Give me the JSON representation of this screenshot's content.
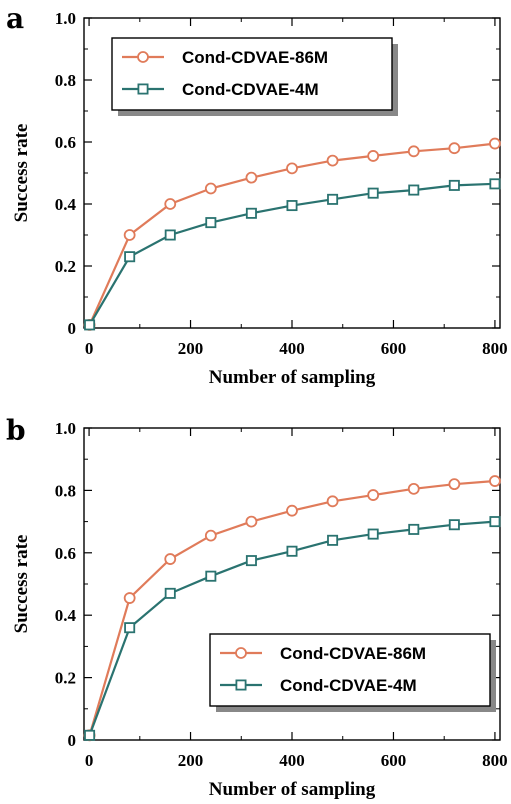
{
  "colors": {
    "orange": "#E07B5A",
    "teal": "#2A7370"
  },
  "chart_data": [
    {
      "panel": "a",
      "type": "line",
      "xlabel": "Number of sampling",
      "ylabel": "Success rate",
      "xlim": [
        -10,
        810
      ],
      "ylim": [
        0,
        1.0
      ],
      "xticks": [
        0,
        200,
        400,
        600,
        800
      ],
      "yticks": [
        0,
        0.2,
        0.4,
        0.6,
        0.8,
        1.0
      ],
      "xtick_labels": [
        "0",
        "200",
        "400",
        "600",
        "800"
      ],
      "ytick_labels": [
        "0",
        "0.2",
        "0.4",
        "0.6",
        "0.8",
        "1.0"
      ],
      "legend_position": "upper-left",
      "grid": false,
      "x": [
        1,
        80,
        160,
        240,
        320,
        400,
        480,
        560,
        640,
        720,
        800
      ],
      "series": [
        {
          "name": "Cond-CDVAE-86M",
          "marker": "circle",
          "color": "#E07B5A",
          "values": [
            0.01,
            0.3,
            0.4,
            0.45,
            0.485,
            0.515,
            0.54,
            0.555,
            0.57,
            0.58,
            0.595
          ]
        },
        {
          "name": "Cond-CDVAE-4M",
          "marker": "square",
          "color": "#2A7370",
          "values": [
            0.01,
            0.23,
            0.3,
            0.34,
            0.37,
            0.395,
            0.415,
            0.435,
            0.445,
            0.46,
            0.465
          ]
        }
      ]
    },
    {
      "panel": "b",
      "type": "line",
      "xlabel": "Number of sampling",
      "ylabel": "Success rate",
      "xlim": [
        -10,
        810
      ],
      "ylim": [
        0,
        1.0
      ],
      "xticks": [
        0,
        200,
        400,
        600,
        800
      ],
      "yticks": [
        0,
        0.2,
        0.4,
        0.6,
        0.8,
        1.0
      ],
      "xtick_labels": [
        "0",
        "200",
        "400",
        "600",
        "800"
      ],
      "ytick_labels": [
        "0",
        "0.2",
        "0.4",
        "0.6",
        "0.8",
        "1.0"
      ],
      "legend_position": "lower-right",
      "grid": false,
      "x": [
        1,
        80,
        160,
        240,
        320,
        400,
        480,
        560,
        640,
        720,
        800
      ],
      "series": [
        {
          "name": "Cond-CDVAE-86M",
          "marker": "circle",
          "color": "#E07B5A",
          "values": [
            0.015,
            0.455,
            0.58,
            0.655,
            0.7,
            0.735,
            0.765,
            0.785,
            0.805,
            0.82,
            0.83
          ]
        },
        {
          "name": "Cond-CDVAE-4M",
          "marker": "square",
          "color": "#2A7370",
          "values": [
            0.015,
            0.36,
            0.47,
            0.525,
            0.575,
            0.605,
            0.64,
            0.66,
            0.675,
            0.69,
            0.7
          ]
        }
      ]
    }
  ]
}
